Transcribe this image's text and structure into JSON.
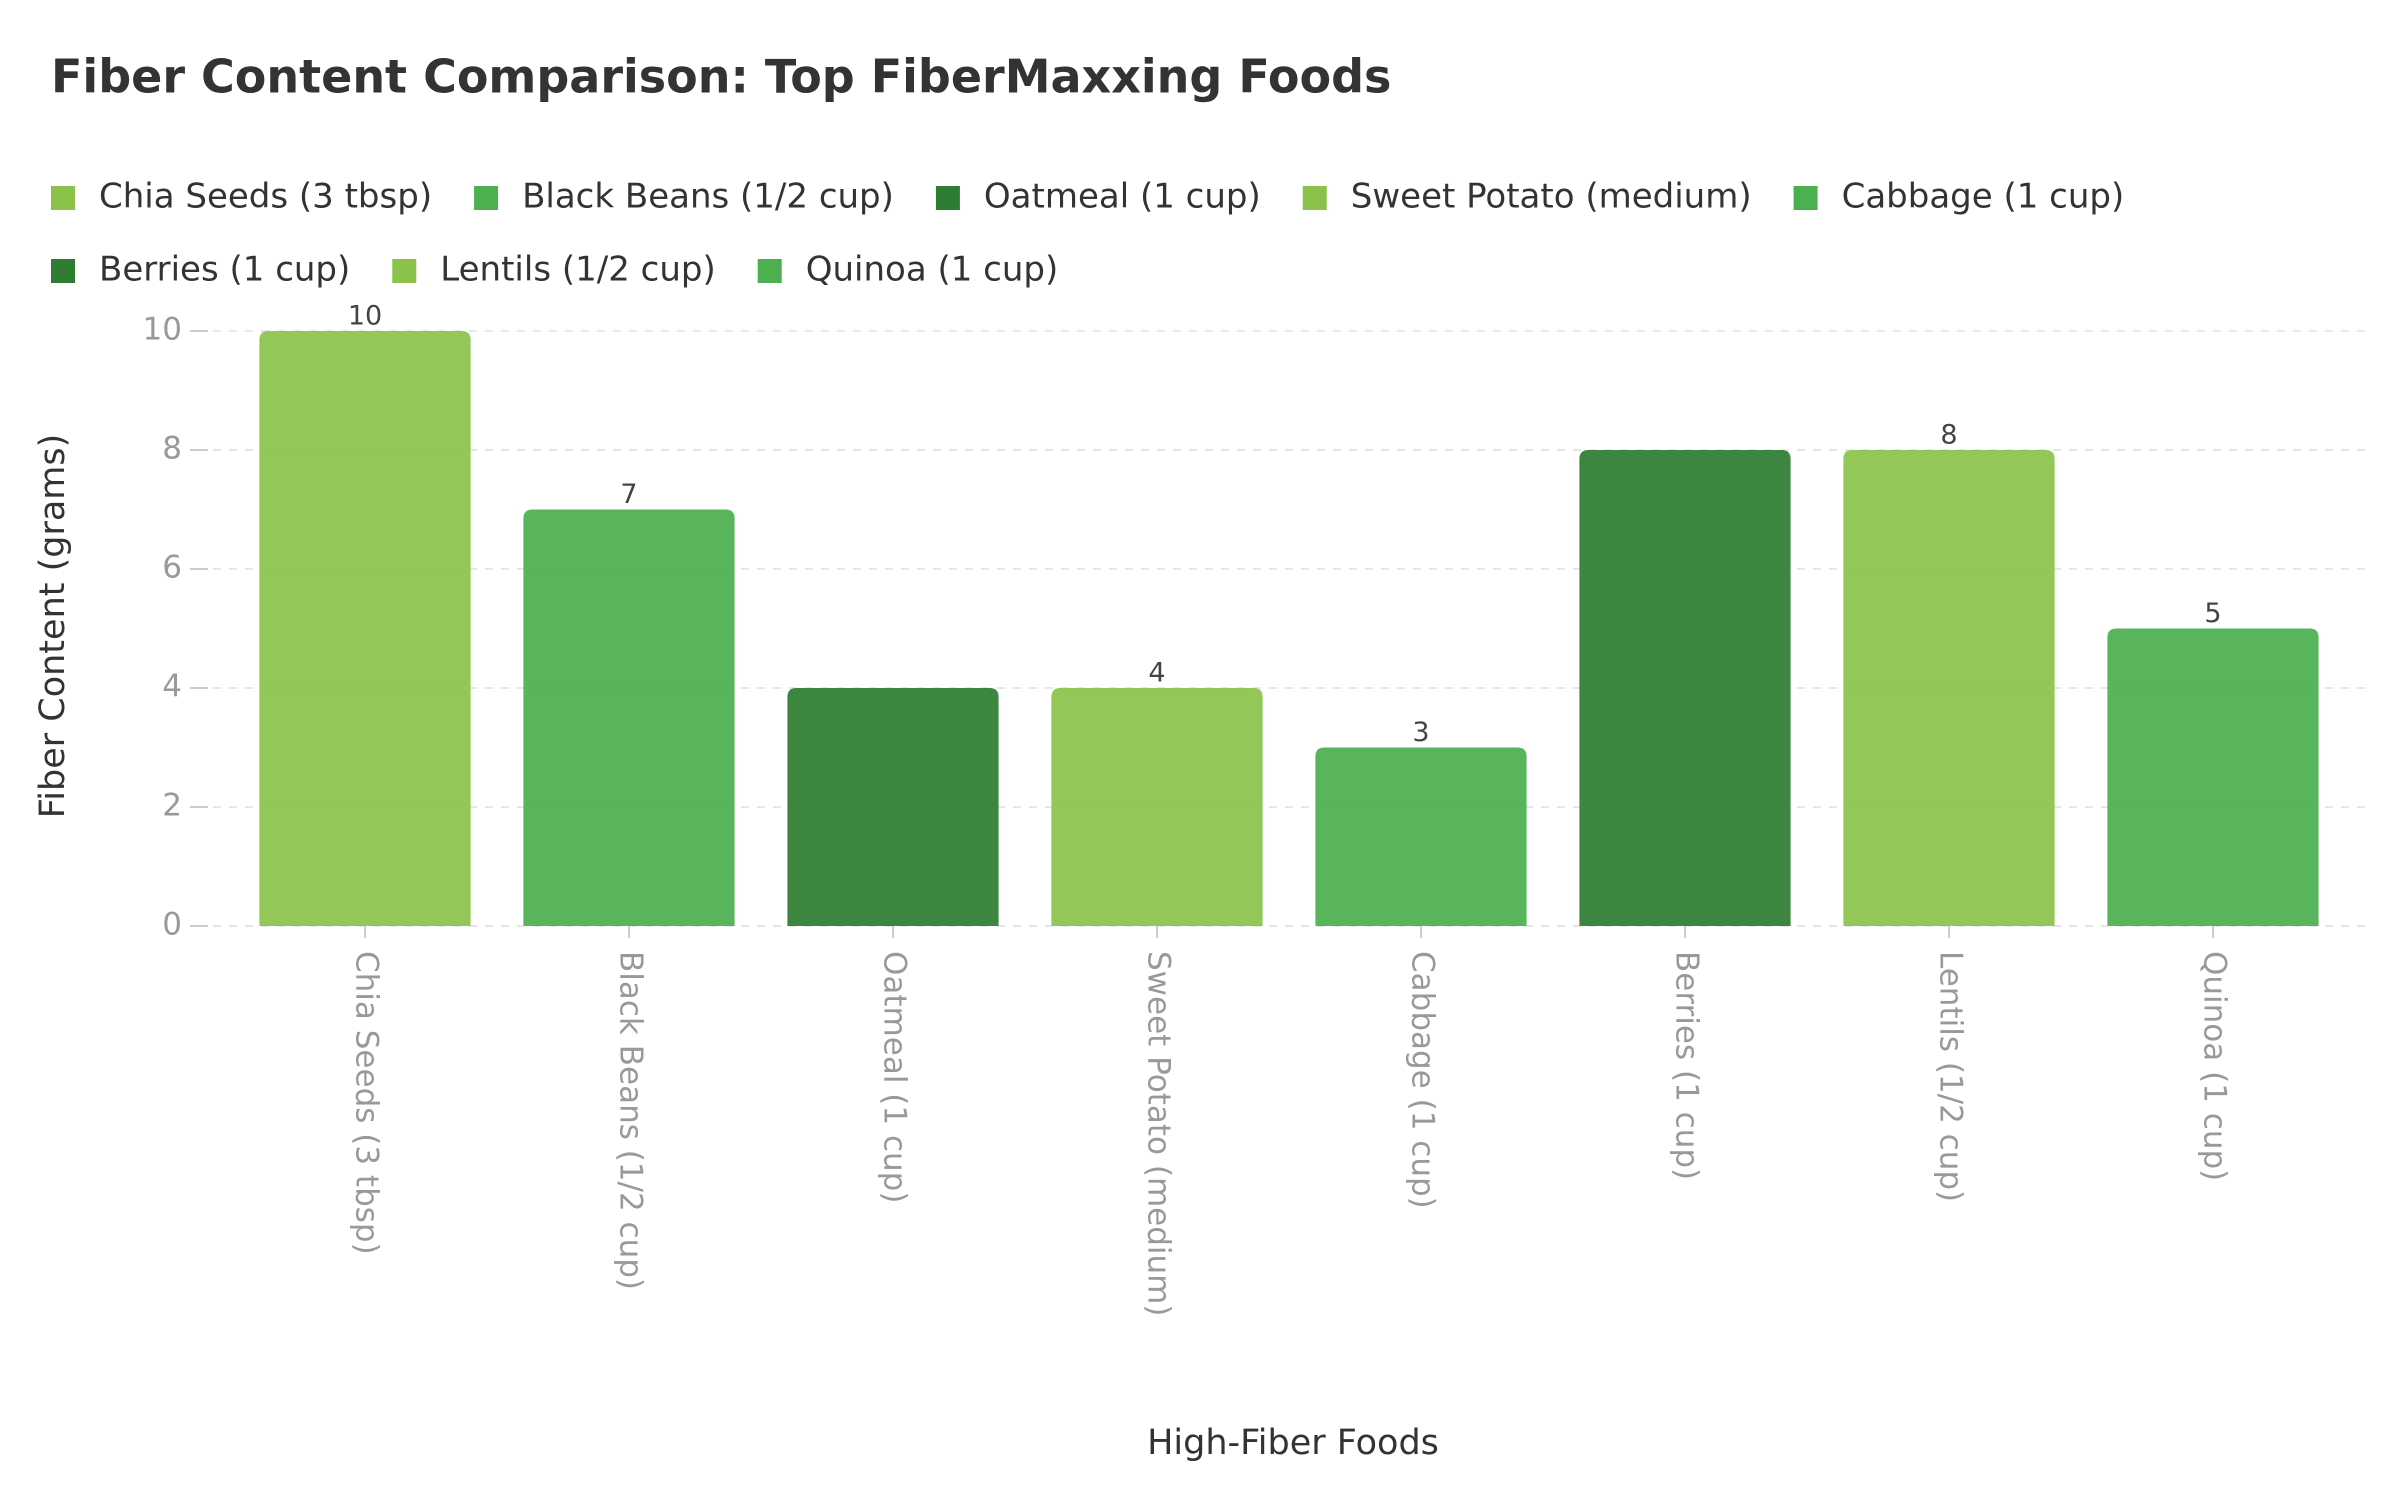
{
  "chart_data": {
    "type": "bar",
    "title": "Fiber Content Comparison: Top FiberMaxxing Foods",
    "x_label": "High-Fiber Foods",
    "y_label": "Fiber Content (grams)",
    "categories": [
      "Chia Seeds (3 tbsp)",
      "Black Beans (1/2 cup)",
      "Oatmeal (1 cup)",
      "Sweet Potato (medium)",
      "Cabbage (1 cup)",
      "Berries (1 cup)",
      "Lentils (1/2 cup)",
      "Quinoa (1 cup)"
    ],
    "values": [
      10,
      7,
      4,
      4,
      3,
      8,
      8,
      5
    ],
    "value_labels": [
      "10",
      "7",
      null,
      "4",
      "3",
      null,
      "8",
      "5"
    ],
    "colors": [
      "#8bc34a",
      "#4caf50",
      "#2e7d32",
      "#8bc34a",
      "#4caf50",
      "#2e7d32",
      "#8bc34a",
      "#4caf50"
    ],
    "ylim": [
      0,
      10
    ],
    "yticks": [
      0,
      2,
      4,
      6,
      8,
      10
    ],
    "grid": true
  }
}
